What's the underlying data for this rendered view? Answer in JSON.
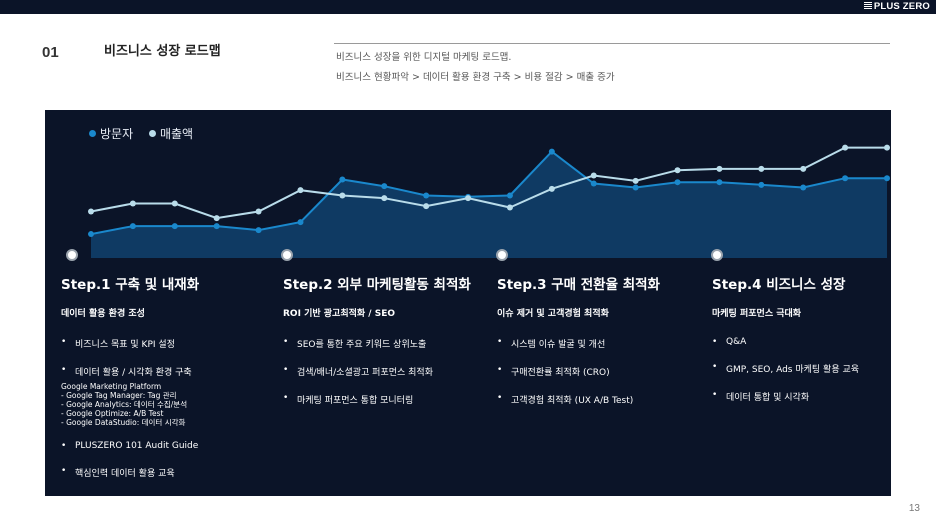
{
  "brand": "PLUS ZERO",
  "section": {
    "number": "01",
    "title": "비즈니스 성장 로드맵",
    "desc_line1": "비즈니스 성장을 위한 디지털 마케팅 로드맵.",
    "desc_line2": "비즈니스 현황파악 > 데이터 활용 환경 구축 > 비용 절감 > 매출 증가"
  },
  "chart_data": {
    "type": "line",
    "x": [
      1,
      2,
      3,
      4,
      5,
      6,
      7,
      8,
      9,
      10,
      11,
      12,
      13,
      14,
      15,
      16,
      17,
      18,
      19,
      20
    ],
    "series": [
      {
        "name": "방문자",
        "values": [
          18,
          24,
          24,
          24,
          21,
          27,
          59,
          54,
          47,
          46,
          47,
          80,
          56,
          53,
          57,
          57,
          55,
          53,
          60,
          60
        ]
      },
      {
        "name": "매출액",
        "values": [
          35,
          41,
          41,
          30,
          35,
          51,
          47,
          45,
          39,
          45,
          38,
          52,
          62,
          58,
          66,
          67,
          67,
          67,
          83,
          83
        ]
      }
    ],
    "ylim": [
      0,
      100
    ],
    "colors": {
      "visitors": "#1a88cc",
      "sales": "#b9dcea",
      "area": "#0f3a63"
    }
  },
  "legend": {
    "visitors": "방문자",
    "sales": "매출액"
  },
  "steps": [
    {
      "title": "Step.1 구축 및 내재화",
      "subtitle": "데이터 활용 환경 조성",
      "items": [
        "비즈니스 목표 및 KPI 설정",
        "데이터 활용 / 시각화 환경 구축"
      ],
      "details": [
        "Google Marketing Platform",
        " - Google Tag Manager: Tag 관리",
        " - Google Analytics: 데이터 수집/분석",
        " - Google Optimize: A/B Test",
        " - Google DataStudio: 데이터 시각화"
      ],
      "items_after": [
        "PLUSZERO 101 Audit Guide",
        "핵심인력 데이터 활용 교육"
      ]
    },
    {
      "title": "Step.2 외부 마케팅활동 최적화",
      "subtitle": "ROI 기반 광고최적화 / SEO",
      "items": [
        "SEO를 통한 주요 키워드 상위노출",
        "검색/배너/소셜광고 퍼포먼스 최적화",
        "마케팅 퍼포먼스 통합 모니터링"
      ]
    },
    {
      "title": "Step.3 구매 전환율 최적화",
      "subtitle": "이슈 제거 및 고객경험 최적화",
      "items": [
        "시스템 이슈 발굴 및 개선",
        "구매전환률 최적화 (CRO)",
        "고객경험 최적화 (UX A/B Test)"
      ]
    },
    {
      "title": "Step.4 비즈니스 성장",
      "subtitle": "마케팅 퍼포먼스 극대화",
      "items": [
        "Q&A",
        "GMP, SEO, Ads 마케팅 활용 교육",
        "데이터 통합 및 시각화"
      ]
    }
  ],
  "page_number": "13"
}
